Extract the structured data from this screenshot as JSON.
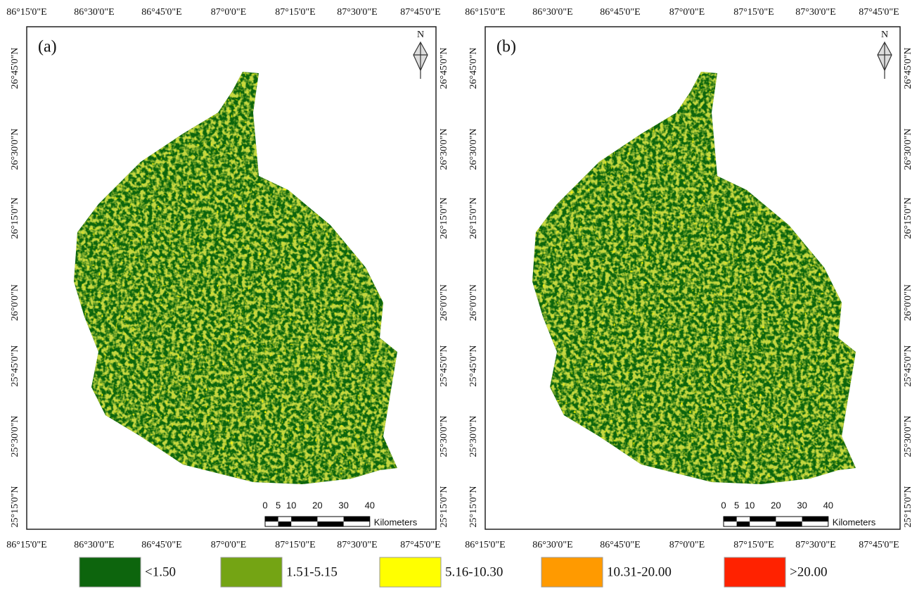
{
  "panels": [
    {
      "label": "(a)"
    },
    {
      "label": "(b)"
    }
  ],
  "lon_labels": [
    "86°15'0\"E",
    "86°30'0\"E",
    "86°45'0\"E",
    "87°0'0\"E",
    "87°15'0\"E",
    "87°30'0\"E",
    "87°45'0\"E"
  ],
  "lat_labels": [
    "26°45'0\"N",
    "26°30'0\"N",
    "26°15'0\"N",
    "26°0'0\"N",
    "25°45'0\"N",
    "25°30'0\"N",
    "25°15'0\"N"
  ],
  "north": "N",
  "scale": {
    "ticks": [
      0,
      5,
      10,
      20,
      30,
      40
    ],
    "unit": "Kilometers"
  },
  "legend": [
    {
      "label": "<1.50",
      "color": "#0d650d"
    },
    {
      "label": "1.51-5.15",
      "color": "#74a414"
    },
    {
      "label": "5.16-10.30",
      "color": "#ffff00"
    },
    {
      "label": "10.31-20.00",
      "color": "#ff9a00"
    },
    {
      "label": ">20.00",
      "color": "#ff2200"
    }
  ]
}
